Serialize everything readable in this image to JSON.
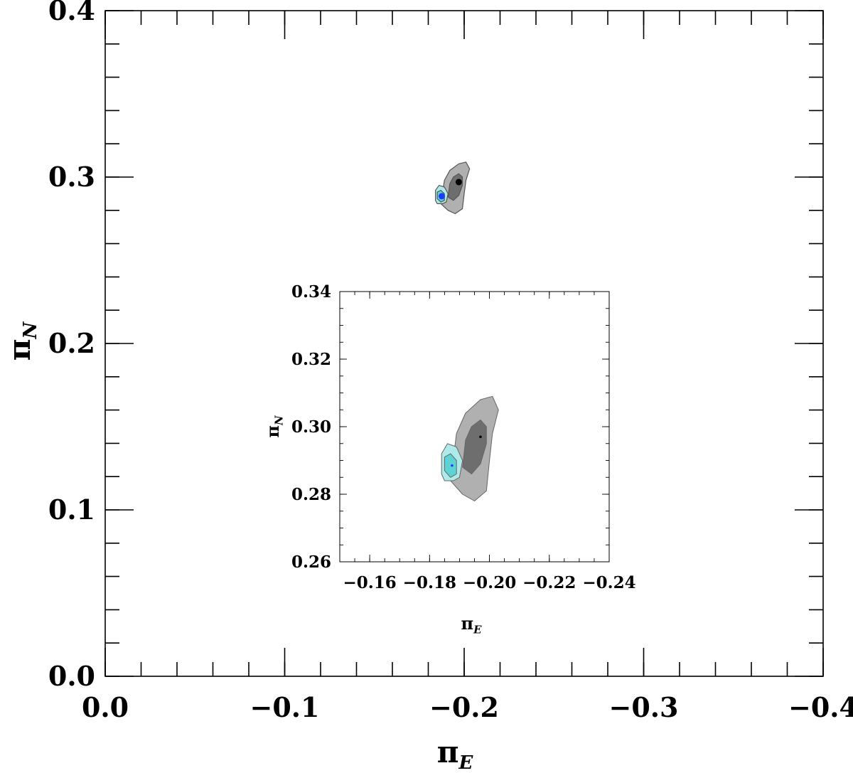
{
  "chart_data": [
    {
      "type": "scatter",
      "name": "main",
      "title": "",
      "xlabel": "π_E",
      "ylabel": "π_N",
      "xlim": [
        0.0,
        -0.4
      ],
      "ylim": [
        0.0,
        0.4
      ],
      "xticks": [
        "0.0",
        "−0.1",
        "−0.2",
        "−0.3",
        "−0.4"
      ],
      "xtick_values": [
        0.0,
        -0.1,
        -0.2,
        -0.3,
        -0.4
      ],
      "yticks": [
        "0.0",
        "0.1",
        "0.2",
        "0.3",
        "0.4"
      ],
      "ytick_values": [
        0.0,
        0.1,
        0.2,
        0.3,
        0.4
      ],
      "grid": false,
      "series": [
        {
          "color": "#000000",
          "points": [
            {
              "x": -0.197,
              "y": 0.297
            }
          ],
          "contour_outer": [
            [
              -0.187,
              0.284
            ],
            [
              -0.191,
              0.28
            ],
            [
              -0.195,
              0.278
            ],
            [
              -0.199,
              0.281
            ],
            [
              -0.2,
              0.29
            ],
            [
              -0.201,
              0.298
            ],
            [
              -0.203,
              0.305
            ],
            [
              -0.201,
              0.309
            ],
            [
              -0.197,
              0.308
            ],
            [
              -0.192,
              0.304
            ],
            [
              -0.189,
              0.298
            ],
            [
              -0.188,
              0.291
            ]
          ],
          "contour_inner": [
            [
              -0.191,
              0.288
            ],
            [
              -0.194,
              0.286
            ],
            [
              -0.197,
              0.289
            ],
            [
              -0.199,
              0.295
            ],
            [
              -0.199,
              0.3
            ],
            [
              -0.197,
              0.302
            ],
            [
              -0.194,
              0.3
            ],
            [
              -0.192,
              0.296
            ]
          ],
          "fill_outer": "#b0b0b0",
          "fill_inner": "#6e6e6e"
        },
        {
          "color": "#1a3cff",
          "points": [
            {
              "x": -0.1875,
              "y": 0.2885
            }
          ],
          "contour_outer": [
            [
              -0.184,
              0.286
            ],
            [
              -0.184,
              0.292
            ],
            [
              -0.186,
              0.295
            ],
            [
              -0.189,
              0.294
            ],
            [
              -0.191,
              0.29
            ],
            [
              -0.19,
              0.285
            ],
            [
              -0.188,
              0.284
            ],
            [
              -0.185,
              0.284
            ]
          ],
          "contour_inner": [
            [
              -0.185,
              0.287
            ],
            [
              -0.185,
              0.291
            ],
            [
              -0.187,
              0.292
            ],
            [
              -0.189,
              0.29
            ],
            [
              -0.189,
              0.286
            ],
            [
              -0.187,
              0.285
            ]
          ],
          "fill_outer": "#aeeaea",
          "fill_inner": "#5fd2d4"
        }
      ]
    },
    {
      "type": "scatter",
      "name": "inset",
      "title": "",
      "xlabel": "π_E",
      "ylabel": "π_N",
      "xlim": [
        -0.15,
        -0.24
      ],
      "ylim": [
        0.26,
        0.34
      ],
      "xticks": [
        "−0.16",
        "−0.18",
        "−0.20",
        "−0.22",
        "−0.24"
      ],
      "xtick_values": [
        -0.16,
        -0.18,
        -0.2,
        -0.22,
        -0.24
      ],
      "yticks": [
        "0.26",
        "0.28",
        "0.30",
        "0.32",
        "0.34"
      ],
      "ytick_values": [
        0.26,
        0.28,
        0.3,
        0.32,
        0.34
      ],
      "grid": false
    }
  ]
}
